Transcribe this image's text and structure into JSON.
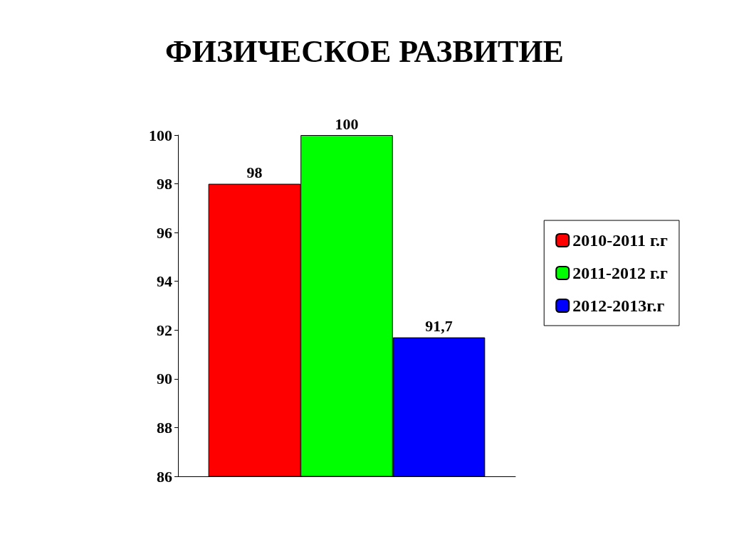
{
  "chart_data": {
    "type": "bar",
    "title": "ФИЗИЧЕСКОЕ РАЗВИТИЕ",
    "categories": [
      null
    ],
    "series": [
      {
        "name": "2010-2011 г.г",
        "color": "#ff0000",
        "values": [
          98
        ],
        "value_labels": [
          "98"
        ]
      },
      {
        "name": "2011-2012 г.г",
        "color": "#00ff00",
        "values": [
          100
        ],
        "value_labels": [
          "100"
        ]
      },
      {
        "name": "2012-2013г.г",
        "color": "#0000ff",
        "values": [
          91.7
        ],
        "value_labels": [
          "91,7"
        ]
      }
    ],
    "ylim": [
      86,
      100
    ],
    "yticks": [
      86,
      88,
      90,
      92,
      94,
      96,
      98,
      100
    ],
    "grid": false,
    "legend": "right"
  }
}
